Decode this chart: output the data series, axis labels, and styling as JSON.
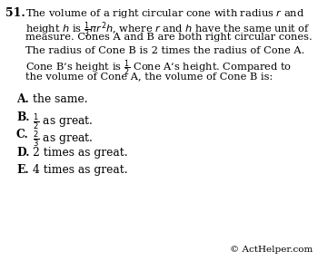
{
  "bg_color": "#ffffff",
  "text_color": "#000000",
  "question_number": "51.",
  "body_lines": [
    "The volume of a right circular cone with radius $r$ and",
    "height $h$ is $\\frac{1}{3}\\pi r^2 h$, where $r$ and $h$ have the same unit of",
    "measure. Cones A and B are both right circular cones.",
    "The radius of Cone B is 2 times the radius of Cone A.",
    "Cone B’s height is $\\frac{1}{2}$ Cone A’s height. Compared to",
    "the volume of Cone A, the volume of Cone B is:"
  ],
  "choices": [
    {
      "letter": "A.",
      "text": "the same."
    },
    {
      "letter": "B.",
      "text": "$\\frac{1}{2}$ as great."
    },
    {
      "letter": "C.",
      "text": "$\\frac{2}{3}$ as great."
    },
    {
      "letter": "D.",
      "text": "2 times as great."
    },
    {
      "letter": "E.",
      "text": "4 times as great."
    }
  ],
  "watermark": "© ActHelper.com",
  "font_size_body": 8.2,
  "font_size_choices": 8.8,
  "font_size_number": 9.0,
  "font_size_watermark": 7.5
}
